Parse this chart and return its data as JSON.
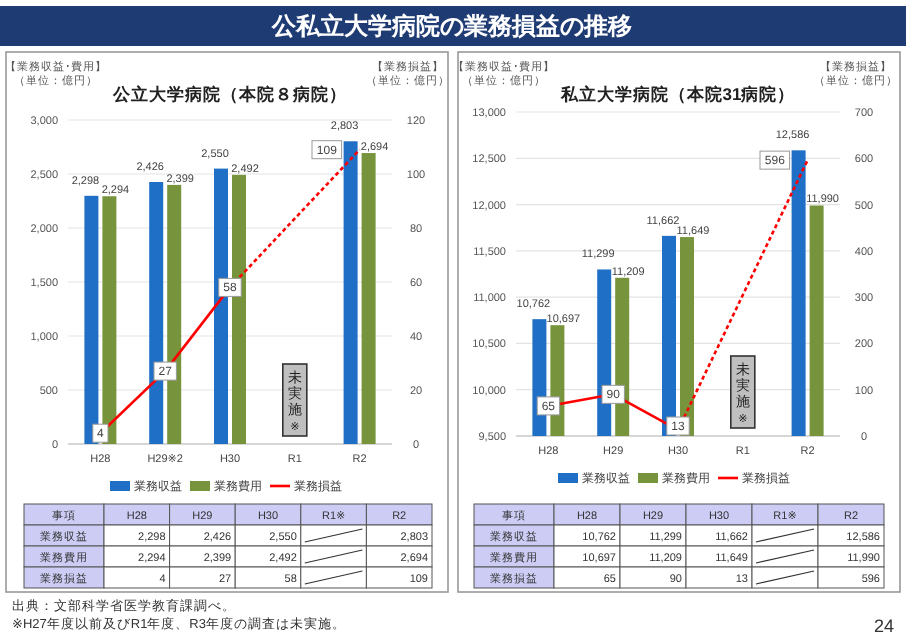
{
  "chart_data": [
    {
      "type": "bar",
      "title": "公立大学病院（本院８病院）",
      "ylabel": "【業務収益･費用】（単位：億円）",
      "y2label": "【業務損益】（単位：億円）",
      "categories": [
        "H28",
        "H29※2",
        "H30",
        "R1",
        "R2"
      ],
      "series": [
        {
          "name": "業務収益",
          "color": "#1f6fc6",
          "values": [
            2298,
            2426,
            2550,
            null,
            2803
          ],
          "value_labels": [
            "2,298",
            "2,426",
            "2,550",
            null,
            "2,803"
          ]
        },
        {
          "name": "業務費用",
          "color": "#77933c",
          "values": [
            2294,
            2399,
            2492,
            null,
            2694
          ],
          "value_labels": [
            "2,294",
            "2,399",
            "2,492",
            null,
            "2,694"
          ]
        },
        {
          "name": "業務損益",
          "type": "line",
          "axis": "y2",
          "color": "#ff0000",
          "values": [
            4,
            27,
            58,
            null,
            109
          ],
          "value_labels": [
            "4",
            "27",
            "58",
            null,
            "109"
          ]
        }
      ],
      "ylim": [
        0,
        3000
      ],
      "yticks": [
        0,
        500,
        {
          "value": 1000,
          "label": "1,000"
        },
        {
          "value": 1500,
          "label": "1,500"
        },
        {
          "value": 2000,
          "label": "2,000"
        },
        {
          "value": 2500,
          "label": "2,500"
        },
        {
          "value": 3000,
          "label": "3,000"
        }
      ],
      "y2lim": [
        0,
        120
      ],
      "y2ticks": [
        0,
        20,
        40,
        60,
        80,
        100,
        120
      ],
      "grid": "y",
      "legend": "bottom",
      "annotations": [
        "事項",
        "H28",
        "H29",
        "H30",
        "R1※",
        "R2",
        "未実施※",
        "公私立大学病院の業務損益の推移",
        "出典：文部科学省医学教育課調べ。",
        "※H27年度以前及びR1年度、R3年度の調査は未実施。"
      ]
    },
    {
      "type": "bar",
      "title": "私立大学病院（本院31病院）",
      "ylabel": "【業務収益･費用】（単位：億円）",
      "y2label": "【業務損益】（単位：億円）",
      "categories": [
        "H28",
        "H29",
        "H30",
        "R1",
        "R2"
      ],
      "series": [
        {
          "name": "業務収益",
          "color": "#1f6fc6",
          "values": [
            10762,
            11299,
            11662,
            null,
            12586
          ],
          "value_labels": [
            "10,762",
            "11,299",
            "11,662",
            null,
            "12,586"
          ]
        },
        {
          "name": "業務費用",
          "color": "#77933c",
          "values": [
            10697,
            11209,
            11649,
            null,
            11990
          ],
          "value_labels": [
            "10,697",
            "11,209",
            "11,649",
            null,
            "11,990"
          ]
        },
        {
          "name": "業務損益",
          "type": "line",
          "axis": "y2",
          "color": "#ff0000",
          "values": [
            65,
            90,
            13,
            null,
            596
          ],
          "value_labels": [
            "65",
            "90",
            "13",
            null,
            "596"
          ]
        }
      ],
      "ylim": [
        9500,
        13000
      ],
      "yticks": [
        {
          "value": 9500,
          "label": "9,500"
        },
        {
          "value": 10000,
          "label": "10,000"
        },
        {
          "value": 10500,
          "label": "10,500"
        },
        {
          "value": 11000,
          "label": "11,000"
        },
        {
          "value": 11500,
          "label": "11,500"
        },
        {
          "value": 12000,
          "label": "12,000"
        },
        {
          "value": 12500,
          "label": "12,500"
        },
        {
          "value": 13000,
          "label": "13,000"
        }
      ],
      "y2lim": [
        0,
        700
      ],
      "y2ticks": [
        0,
        100,
        200,
        300,
        400,
        500,
        600,
        700
      ],
      "grid": "y",
      "legend": "bottom",
      "annotations": [
        "事項",
        "H28",
        "H29",
        "H30",
        "R1※",
        "R2",
        "未実施※",
        "24"
      ]
    }
  ]
}
